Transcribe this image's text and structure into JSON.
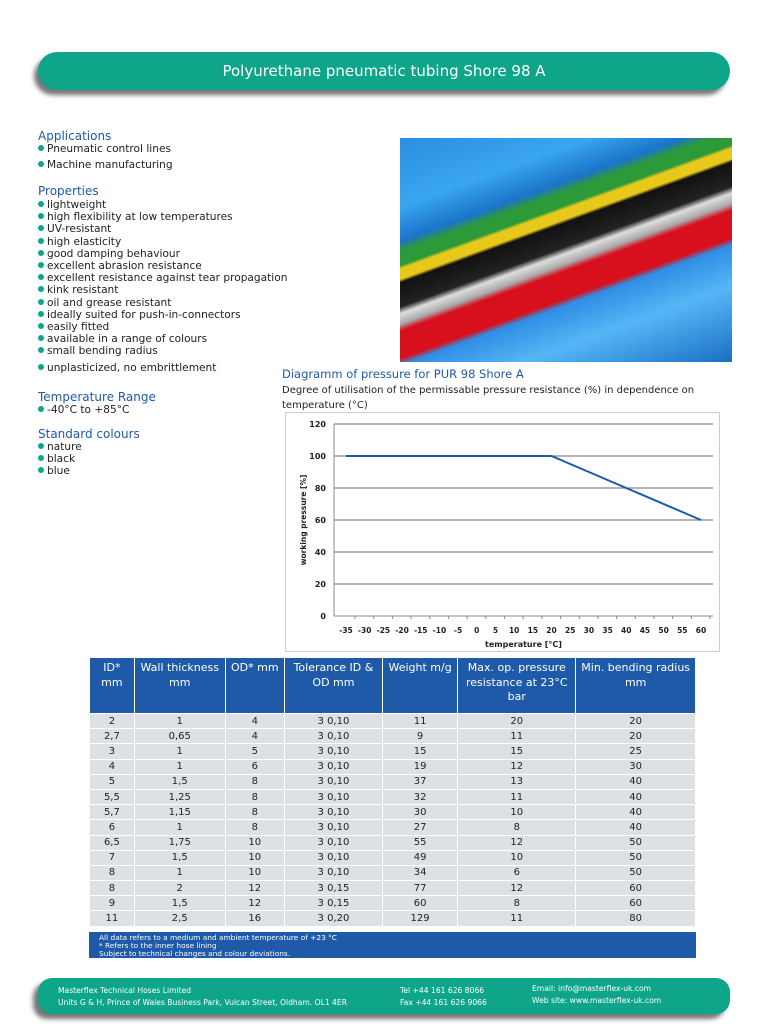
{
  "title": "Polyurethane pneumatic tubing Shore 98 A",
  "applications": {
    "heading": "Applications",
    "items": [
      "Pneumatic control lines",
      "Machine manufacturing"
    ]
  },
  "properties": {
    "heading": "Properties",
    "items": [
      "lightweight",
      "high flexibility at low temperatures",
      "UV-resistant",
      "high elasticity",
      "good damping behaviour",
      "excellent abrasion resistance",
      "excellent resistance against tear propagation",
      "kink resistant",
      "oil and grease resistant",
      "ideally suited for push-in-connectors",
      "easily fitted",
      "available in a range of colours",
      "small bending radius",
      "unplasticized, no embrittlement"
    ]
  },
  "temperature": {
    "heading": "Temperature Range",
    "items": [
      "-40°C to +85°C"
    ]
  },
  "colours": {
    "heading": "Standard colours",
    "items": [
      "nature",
      "black",
      "blue"
    ]
  },
  "diagram": {
    "title": "Diagramm of pressure for PUR 98 Shore A",
    "subtitle": "Degree of utilisation of the permissable pressure resistance (%) in dependence on temperature (°C)"
  },
  "chart_data": {
    "type": "line",
    "xlabel": "temperature [°C]",
    "ylabel": "working pressure [%]",
    "ylim": [
      0,
      120
    ],
    "yticks": [
      0,
      20,
      40,
      60,
      80,
      100,
      120
    ],
    "xticks": [
      -35,
      -30,
      -25,
      -20,
      -15,
      -10,
      -5,
      0,
      5,
      10,
      15,
      20,
      25,
      30,
      35,
      40,
      45,
      50,
      55,
      60
    ],
    "grid": true,
    "series": [
      {
        "x": [
          -35,
          20,
          60
        ],
        "y": [
          100,
          100,
          60
        ]
      }
    ],
    "color": "#1f5aa8"
  },
  "table": {
    "headers": [
      "ID* mm",
      "Wall thickness mm",
      "OD* mm",
      "Tolerance ID & OD mm",
      "Weight m/g",
      "Max. op. pressure resistance at 23°C bar",
      "Min. bending radius mm"
    ],
    "rows": [
      [
        "2",
        "1",
        "4",
        "3 0,10",
        "11",
        "20",
        "20"
      ],
      [
        "2,7",
        "0,65",
        "4",
        "3 0,10",
        "9",
        "11",
        "20"
      ],
      [
        "3",
        "1",
        "5",
        "3 0,10",
        "15",
        "15",
        "25"
      ],
      [
        "4",
        "1",
        "6",
        "3 0,10",
        "19",
        "12",
        "30"
      ],
      [
        "5",
        "1,5",
        "8",
        "3 0,10",
        "37",
        "13",
        "40"
      ],
      [
        "5,5",
        "1,25",
        "8",
        "3 0,10",
        "32",
        "11",
        "40"
      ],
      [
        "5,7",
        "1,15",
        "8",
        "3 0,10",
        "30",
        "10",
        "40"
      ],
      [
        "6",
        "1",
        "8",
        "3 0,10",
        "27",
        "8",
        "40"
      ],
      [
        "6,5",
        "1,75",
        "10",
        "3 0,10",
        "55",
        "12",
        "50"
      ],
      [
        "7",
        "1,5",
        "10",
        "3 0,10",
        "49",
        "10",
        "50"
      ],
      [
        "8",
        "1",
        "10",
        "3 0,10",
        "34",
        "6",
        "50"
      ],
      [
        "8",
        "2",
        "12",
        "3 0,15",
        "77",
        "12",
        "60"
      ],
      [
        "9",
        "1,5",
        "12",
        "3 0,15",
        "60",
        "8",
        "60"
      ],
      [
        "11",
        "2,5",
        "16",
        "3 0,20",
        "129",
        "11",
        "80"
      ]
    ],
    "notes": [
      "All data refers to a medium and ambient temperature of +23 °C",
      "* Refers to the inner hose lining",
      "Subject to technical changes and colour deviations."
    ]
  },
  "footer": {
    "company": "Masterflex Technical Hoses Limited",
    "address": "Units G & H, Prince of Wales Business Park, Vulcan Street, Oldham. OL1 4ER",
    "tel": "Tel +44 161 626 8066",
    "fax": "Fax +44 161 626 9066",
    "email": "Email: info@masterflex-uk.com",
    "web": "Web site: www.masterflex-uk.com"
  },
  "colors": {
    "teal": "#0ea58a",
    "blue": "#1f5aa8"
  }
}
